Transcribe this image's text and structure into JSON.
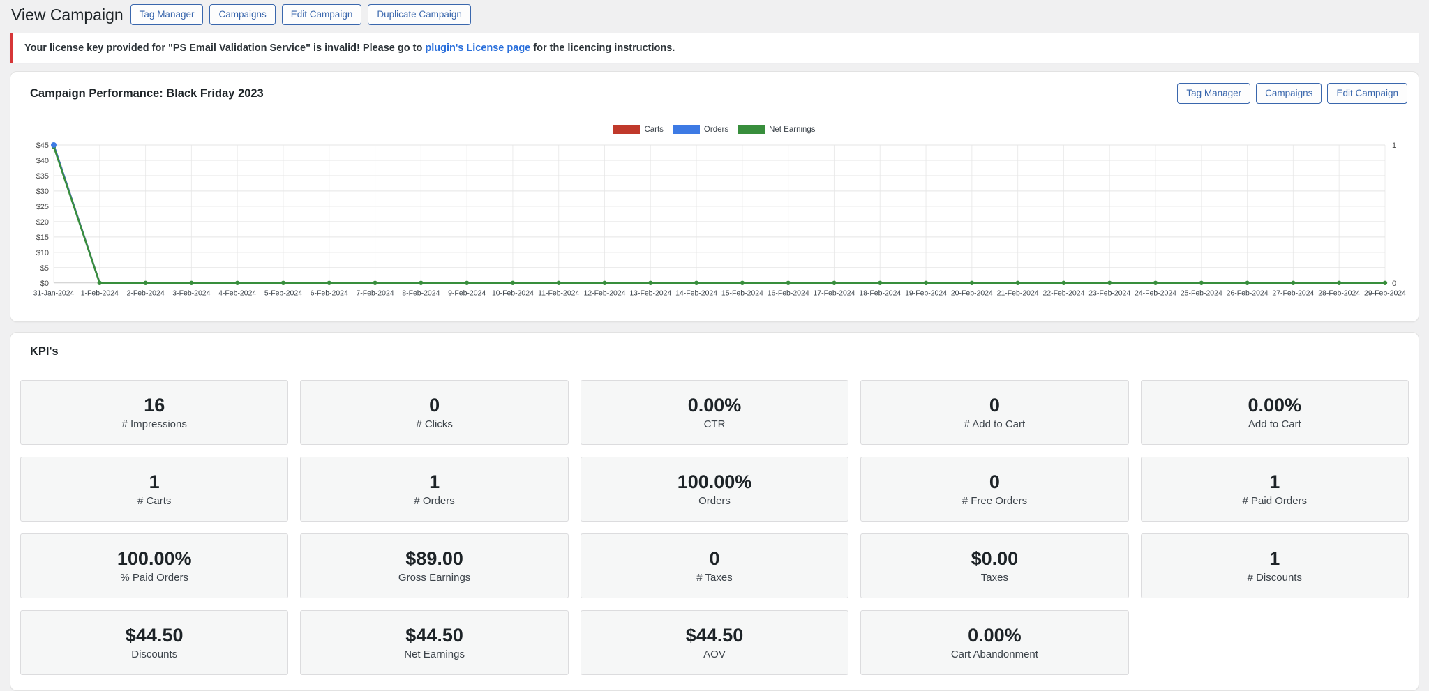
{
  "page": {
    "title": "View Campaign"
  },
  "header": {
    "buttons": [
      "Tag Manager",
      "Campaigns",
      "Edit Campaign",
      "Duplicate Campaign"
    ]
  },
  "notice": {
    "text_before": "Your license key provided for \"PS Email Validation Service\" is invalid! Please go to ",
    "link_text": "plugin's License page",
    "text_after": " for the licencing instructions."
  },
  "performance_panel": {
    "title": "Campaign Performance: Black Friday 2023",
    "buttons": [
      "Tag Manager",
      "Campaigns",
      "Edit Campaign"
    ]
  },
  "chart_data": {
    "type": "line",
    "title": "",
    "legend_position": "top",
    "grid": true,
    "x": [
      "31-Jan-2024",
      "1-Feb-2024",
      "2-Feb-2024",
      "3-Feb-2024",
      "4-Feb-2024",
      "5-Feb-2024",
      "6-Feb-2024",
      "7-Feb-2024",
      "8-Feb-2024",
      "9-Feb-2024",
      "10-Feb-2024",
      "11-Feb-2024",
      "12-Feb-2024",
      "13-Feb-2024",
      "14-Feb-2024",
      "15-Feb-2024",
      "16-Feb-2024",
      "17-Feb-2024",
      "18-Feb-2024",
      "19-Feb-2024",
      "20-Feb-2024",
      "21-Feb-2024",
      "22-Feb-2024",
      "23-Feb-2024",
      "24-Feb-2024",
      "25-Feb-2024",
      "26-Feb-2024",
      "27-Feb-2024",
      "28-Feb-2024",
      "29-Feb-2024"
    ],
    "left_axis": {
      "min": 0,
      "max": 45,
      "tick_step": 5,
      "ticks": [
        "$0",
        "$5",
        "$10",
        "$15",
        "$20",
        "$25",
        "$30",
        "$35",
        "$40",
        "$45"
      ]
    },
    "right_axis": {
      "min": 0,
      "max": 1,
      "ticks": [
        "0",
        "1"
      ]
    },
    "series": [
      {
        "name": "Carts",
        "color": "#c0392b",
        "axis": "right",
        "values": [
          1,
          0,
          0,
          0,
          0,
          0,
          0,
          0,
          0,
          0,
          0,
          0,
          0,
          0,
          0,
          0,
          0,
          0,
          0,
          0,
          0,
          0,
          0,
          0,
          0,
          0,
          0,
          0,
          0,
          0
        ]
      },
      {
        "name": "Orders",
        "color": "#3d7ae4",
        "axis": "right",
        "values": [
          1,
          0,
          0,
          0,
          0,
          0,
          0,
          0,
          0,
          0,
          0,
          0,
          0,
          0,
          0,
          0,
          0,
          0,
          0,
          0,
          0,
          0,
          0,
          0,
          0,
          0,
          0,
          0,
          0,
          0
        ]
      },
      {
        "name": "Net Earnings",
        "color": "#388e3c",
        "axis": "left",
        "values": [
          44.5,
          0,
          0,
          0,
          0,
          0,
          0,
          0,
          0,
          0,
          0,
          0,
          0,
          0,
          0,
          0,
          0,
          0,
          0,
          0,
          0,
          0,
          0,
          0,
          0,
          0,
          0,
          0,
          0,
          0
        ]
      }
    ]
  },
  "kpis": {
    "title": "KPI's",
    "cards": [
      {
        "value": "16",
        "label": "# Impressions"
      },
      {
        "value": "0",
        "label": "# Clicks"
      },
      {
        "value": "0.00%",
        "label": "CTR"
      },
      {
        "value": "0",
        "label": "# Add to Cart"
      },
      {
        "value": "0.00%",
        "label": "Add to Cart"
      },
      {
        "value": "1",
        "label": "# Carts"
      },
      {
        "value": "1",
        "label": "# Orders"
      },
      {
        "value": "100.00%",
        "label": "Orders"
      },
      {
        "value": "0",
        "label": "# Free Orders"
      },
      {
        "value": "1",
        "label": "# Paid Orders"
      },
      {
        "value": "100.00%",
        "label": "% Paid Orders"
      },
      {
        "value": "$89.00",
        "label": "Gross Earnings"
      },
      {
        "value": "0",
        "label": "# Taxes"
      },
      {
        "value": "$0.00",
        "label": "Taxes"
      },
      {
        "value": "1",
        "label": "# Discounts"
      },
      {
        "value": "$44.50",
        "label": "Discounts"
      },
      {
        "value": "$44.50",
        "label": "Net Earnings"
      },
      {
        "value": "$44.50",
        "label": "AOV"
      },
      {
        "value": "0.00%",
        "label": "Cart Abandonment"
      }
    ]
  },
  "colors": {
    "accent_blue": "#3a67ad",
    "error_red": "#d63638",
    "link_blue": "#2a6fdb",
    "carts": "#c0392b",
    "orders": "#3d7ae4",
    "net_earnings": "#388e3c"
  }
}
